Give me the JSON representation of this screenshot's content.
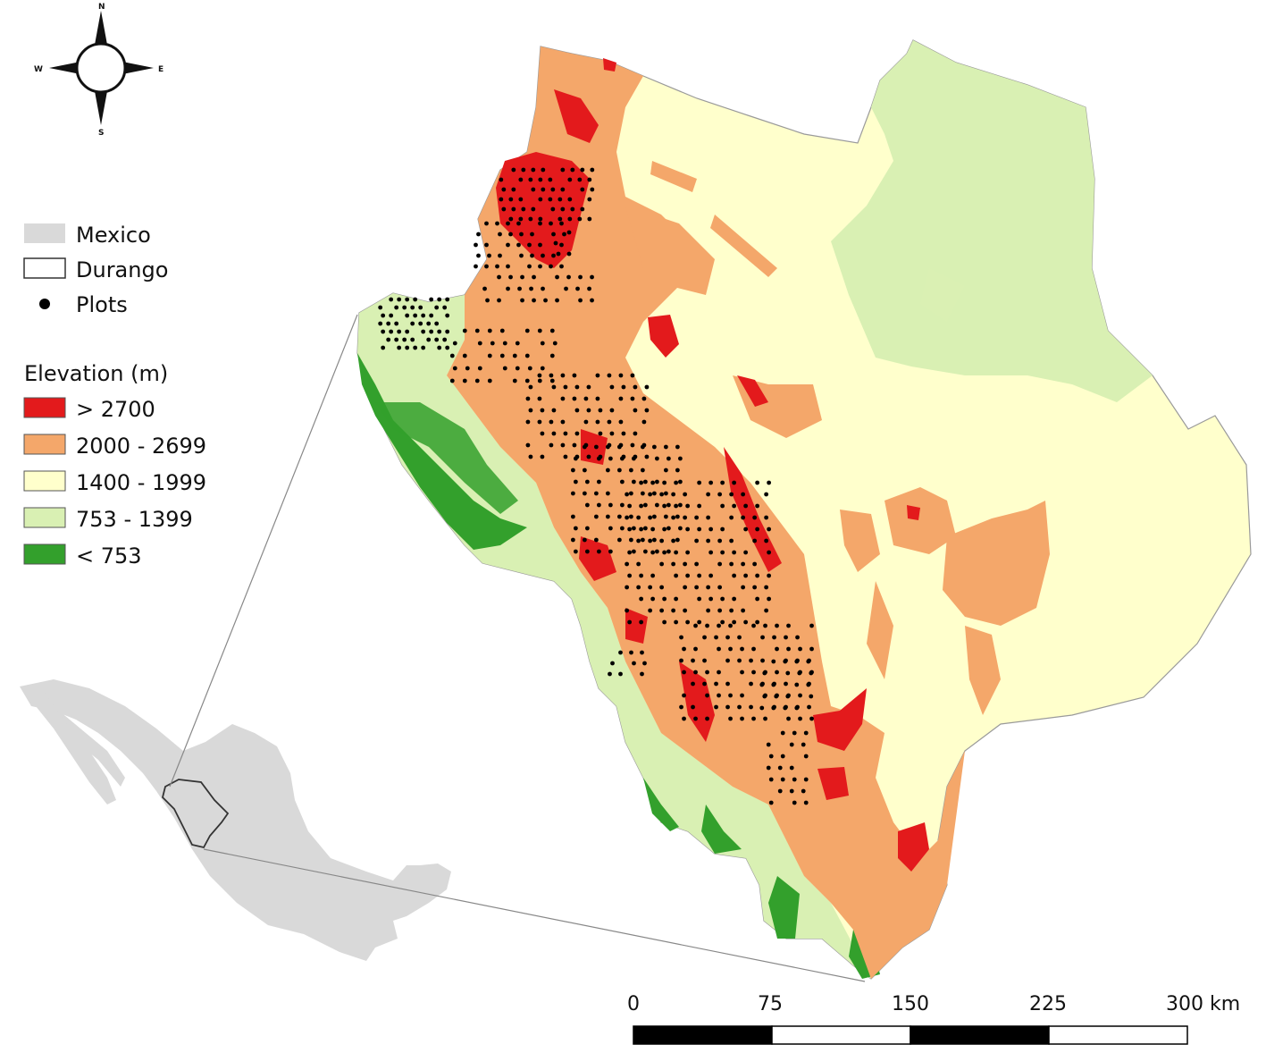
{
  "compass": {
    "north": "N",
    "east": "E",
    "south": "S",
    "west": "W"
  },
  "legend": {
    "items": [
      {
        "label": "Mexico",
        "color": "#d9d9d9"
      },
      {
        "label": "Durango",
        "color": "#ffffff"
      },
      {
        "label": "Plots",
        "color": "#000000"
      }
    ],
    "elevation_title": "Elevation (m)",
    "elevation_classes": [
      {
        "label": "> 2700",
        "color": "#e31a1c"
      },
      {
        "label": "2000 - 2699",
        "color": "#f4a76a"
      },
      {
        "label": "1400 - 1999",
        "color": "#ffffcc"
      },
      {
        "label": "753 - 1399",
        "color": "#d9f0b3"
      },
      {
        "label": "< 753",
        "color": "#33a02c"
      }
    ]
  },
  "scale_bar": {
    "ticks": [
      "0",
      "75",
      "150",
      "225",
      "300 km"
    ]
  }
}
